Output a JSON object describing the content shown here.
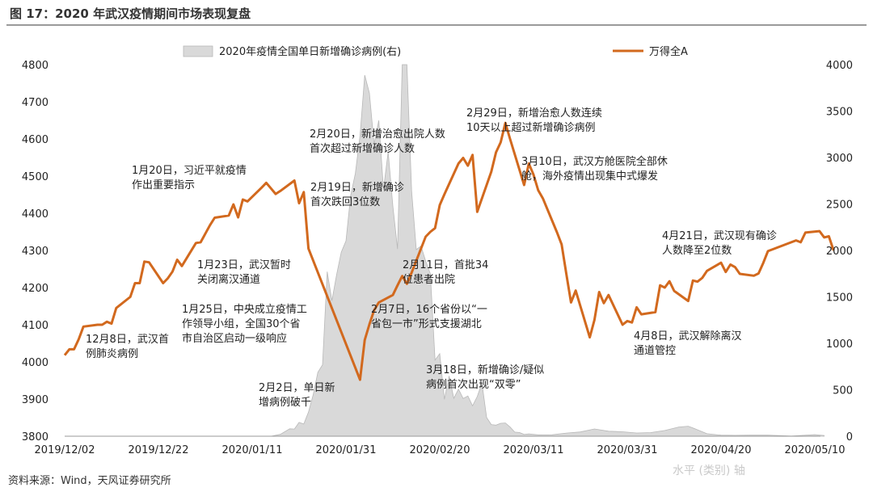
{
  "title": "图 17：2020 年武汉疫情期间市场表现复盘",
  "source": "资料来源：Wind，天风证券研究所",
  "watermark": "水平 (类别) 轴",
  "colors": {
    "line": "#d2691e",
    "area": "#d9d9d9",
    "area_stroke": "#b8b8b8"
  },
  "chart_data": {
    "type": "line",
    "x_ticks": [
      "2019/12/02",
      "2019/12/22",
      "2020/01/11",
      "2020/01/31",
      "2020/02/20",
      "2020/03/11",
      "2020/03/31",
      "2020/04/20",
      "2020/05/10"
    ],
    "ylim": [
      3800,
      4800
    ],
    "y_ticks": [
      "4800",
      "4700",
      "4600",
      "4500",
      "4400",
      "4300",
      "4200",
      "4100",
      "4000",
      "3900",
      "3800"
    ],
    "y2lim": [
      0,
      4000
    ],
    "y2_ticks": [
      "4000",
      "3500",
      "3000",
      "2500",
      "2000",
      "1500",
      "1000",
      "500",
      "0"
    ],
    "grid": false,
    "legend_position": "top",
    "series": [
      {
        "name": "2020年疫情全国单日新增确诊病例(右)",
        "axis": "right",
        "style": "area",
        "points": [
          [
            "2020/01/15",
            0
          ],
          [
            "2020/01/17",
            20
          ],
          [
            "2020/01/19",
            80
          ],
          [
            "2020/01/20",
            77
          ],
          [
            "2020/01/21",
            149
          ],
          [
            "2020/01/22",
            131
          ],
          [
            "2020/01/23",
            259
          ],
          [
            "2020/01/24",
            444
          ],
          [
            "2020/01/25",
            688
          ],
          [
            "2020/01/26",
            769
          ],
          [
            "2020/01/27",
            1771
          ],
          [
            "2020/01/28",
            1459
          ],
          [
            "2020/01/29",
            1737
          ],
          [
            "2020/01/30",
            1982
          ],
          [
            "2020/01/31",
            2102
          ],
          [
            "2020/02/01",
            2590
          ],
          [
            "2020/02/02",
            2829
          ],
          [
            "2020/02/03",
            3235
          ],
          [
            "2020/02/04",
            3887
          ],
          [
            "2020/02/05",
            3694
          ],
          [
            "2020/02/06",
            3143
          ],
          [
            "2020/02/07",
            3399
          ],
          [
            "2020/02/08",
            2656
          ],
          [
            "2020/02/09",
            3062
          ],
          [
            "2020/02/10",
            2478
          ],
          [
            "2020/02/11",
            2015
          ],
          [
            "2020/02/12",
            4000
          ],
          [
            "2020/02/13",
            4000
          ],
          [
            "2020/02/14",
            2641
          ],
          [
            "2020/02/15",
            2009
          ],
          [
            "2020/02/16",
            2048
          ],
          [
            "2020/02/17",
            1886
          ],
          [
            "2020/02/18",
            1749
          ],
          [
            "2020/02/19",
            820
          ],
          [
            "2020/02/20",
            889
          ],
          [
            "2020/02/21",
            397
          ],
          [
            "2020/02/22",
            648
          ],
          [
            "2020/02/23",
            409
          ],
          [
            "2020/02/24",
            508
          ],
          [
            "2020/02/25",
            406
          ],
          [
            "2020/02/26",
            433
          ],
          [
            "2020/02/27",
            327
          ],
          [
            "2020/02/28",
            427
          ],
          [
            "2020/02/29",
            573
          ],
          [
            "2020/03/01",
            202
          ],
          [
            "2020/03/02",
            125
          ],
          [
            "2020/03/03",
            119
          ],
          [
            "2020/03/04",
            139
          ],
          [
            "2020/03/05",
            143
          ],
          [
            "2020/03/06",
            99
          ],
          [
            "2020/03/07",
            44
          ],
          [
            "2020/03/08",
            40
          ],
          [
            "2020/03/09",
            19
          ],
          [
            "2020/03/10",
            24
          ],
          [
            "2020/03/12",
            15
          ],
          [
            "2020/03/15",
            16
          ],
          [
            "2020/03/18",
            34
          ],
          [
            "2020/03/21",
            46
          ],
          [
            "2020/03/24",
            78
          ],
          [
            "2020/03/27",
            54
          ],
          [
            "2020/03/30",
            48
          ],
          [
            "2020/04/02",
            35
          ],
          [
            "2020/04/05",
            39
          ],
          [
            "2020/04/08",
            62
          ],
          [
            "2020/04/11",
            99
          ],
          [
            "2020/04/13",
            108
          ],
          [
            "2020/04/14",
            89
          ],
          [
            "2020/04/17",
            27
          ],
          [
            "2020/04/20",
            11
          ],
          [
            "2020/04/23",
            10
          ],
          [
            "2020/04/26",
            11
          ],
          [
            "2020/04/30",
            12
          ],
          [
            "2020/05/05",
            2
          ],
          [
            "2020/05/10",
            17
          ],
          [
            "2020/05/12",
            8
          ]
        ]
      },
      {
        "name": "万得全A",
        "axis": "left",
        "style": "line",
        "points": [
          [
            "2019/12/02",
            4018
          ],
          [
            "2019/12/03",
            4034
          ],
          [
            "2019/12/04",
            4034
          ],
          [
            "2019/12/05",
            4061
          ],
          [
            "2019/12/06",
            4095
          ],
          [
            "2019/12/09",
            4100
          ],
          [
            "2019/12/10",
            4100
          ],
          [
            "2019/12/11",
            4108
          ],
          [
            "2019/12/12",
            4103
          ],
          [
            "2019/12/13",
            4145
          ],
          [
            "2019/12/16",
            4175
          ],
          [
            "2019/12/17",
            4212
          ],
          [
            "2019/12/18",
            4212
          ],
          [
            "2019/12/19",
            4270
          ],
          [
            "2019/12/20",
            4268
          ],
          [
            "2019/12/23",
            4212
          ],
          [
            "2019/12/24",
            4225
          ],
          [
            "2019/12/25",
            4243
          ],
          [
            "2019/12/26",
            4275
          ],
          [
            "2019/12/27",
            4258
          ],
          [
            "2019/12/30",
            4320
          ],
          [
            "2019/12/31",
            4322
          ],
          [
            "2020/01/02",
            4368
          ],
          [
            "2020/01/03",
            4388
          ],
          [
            "2020/01/06",
            4394
          ],
          [
            "2020/01/07",
            4424
          ],
          [
            "2020/01/08",
            4389
          ],
          [
            "2020/01/09",
            4437
          ],
          [
            "2020/01/10",
            4432
          ],
          [
            "2020/01/13",
            4469
          ],
          [
            "2020/01/14",
            4482
          ],
          [
            "2020/01/15",
            4467
          ],
          [
            "2020/01/16",
            4452
          ],
          [
            "2020/01/17",
            4460
          ],
          [
            "2020/01/20",
            4488
          ],
          [
            "2020/01/21",
            4427
          ],
          [
            "2020/01/22",
            4457
          ],
          [
            "2020/01/23",
            4305
          ],
          [
            "2020/02/03",
            3952
          ],
          [
            "2020/02/04",
            4059
          ],
          [
            "2020/02/05",
            4101
          ],
          [
            "2020/02/06",
            4139
          ],
          [
            "2020/02/07",
            4160
          ],
          [
            "2020/02/10",
            4180
          ],
          [
            "2020/02/11",
            4206
          ],
          [
            "2020/02/12",
            4231
          ],
          [
            "2020/02/13",
            4210
          ],
          [
            "2020/02/14",
            4240
          ],
          [
            "2020/02/17",
            4337
          ],
          [
            "2020/02/18",
            4350
          ],
          [
            "2020/02/19",
            4360
          ],
          [
            "2020/02/20",
            4422
          ],
          [
            "2020/02/21",
            4451
          ],
          [
            "2020/02/24",
            4534
          ],
          [
            "2020/02/25",
            4549
          ],
          [
            "2020/02/26",
            4528
          ],
          [
            "2020/02/27",
            4557
          ],
          [
            "2020/02/28",
            4404
          ],
          [
            "2020/03/02",
            4512
          ],
          [
            "2020/03/03",
            4564
          ],
          [
            "2020/03/04",
            4591
          ],
          [
            "2020/03/05",
            4643
          ],
          [
            "2020/03/06",
            4600
          ],
          [
            "2020/03/09",
            4476
          ],
          [
            "2020/03/10",
            4534
          ],
          [
            "2020/03/11",
            4504
          ],
          [
            "2020/03/12",
            4462
          ],
          [
            "2020/03/13",
            4440
          ],
          [
            "2020/03/16",
            4349
          ],
          [
            "2020/03/17",
            4316
          ],
          [
            "2020/03/18",
            4237
          ],
          [
            "2020/03/19",
            4160
          ],
          [
            "2020/03/20",
            4192
          ],
          [
            "2020/03/23",
            4066
          ],
          [
            "2020/03/24",
            4113
          ],
          [
            "2020/03/25",
            4188
          ],
          [
            "2020/03/26",
            4158
          ],
          [
            "2020/03/27",
            4180
          ],
          [
            "2020/03/30",
            4100
          ],
          [
            "2020/03/31",
            4110
          ],
          [
            "2020/04/01",
            4106
          ],
          [
            "2020/04/02",
            4147
          ],
          [
            "2020/04/03",
            4128
          ],
          [
            "2020/04/06",
            4134
          ],
          [
            "2020/04/07",
            4206
          ],
          [
            "2020/04/08",
            4200
          ],
          [
            "2020/04/09",
            4217
          ],
          [
            "2020/04/10",
            4191
          ],
          [
            "2020/04/13",
            4164
          ],
          [
            "2020/04/14",
            4219
          ],
          [
            "2020/04/15",
            4216
          ],
          [
            "2020/04/16",
            4226
          ],
          [
            "2020/04/17",
            4245
          ],
          [
            "2020/04/20",
            4267
          ],
          [
            "2020/04/21",
            4242
          ],
          [
            "2020/04/22",
            4262
          ],
          [
            "2020/04/23",
            4255
          ],
          [
            "2020/04/24",
            4237
          ],
          [
            "2020/04/27",
            4232
          ],
          [
            "2020/04/28",
            4238
          ],
          [
            "2020/04/29",
            4266
          ],
          [
            "2020/04/30",
            4298
          ],
          [
            "2020/05/06",
            4327
          ],
          [
            "2020/05/07",
            4322
          ],
          [
            "2020/05/08",
            4348
          ],
          [
            "2020/05/11",
            4352
          ],
          [
            "2020/05/12",
            4335
          ],
          [
            "2020/05/13",
            4338
          ],
          [
            "2020/05/14",
            4300
          ]
        ]
      }
    ],
    "annotations": [
      {
        "date": "2019/12/08",
        "lines": [
          "12月8日，武汉首",
          "例肺炎病例"
        ]
      },
      {
        "date": "2020/01/20",
        "lines": [
          "1月20日，习近平就疫情",
          "作出重要指示"
        ]
      },
      {
        "date": "2020/01/23",
        "lines": [
          "1月23日，武汉暂时",
          "关闭离汉通道"
        ]
      },
      {
        "date": "2020/01/25",
        "lines": [
          "1月25日，中央成立疫情工",
          "作领导小组，全国30个省",
          "市自治区启动一级响应"
        ]
      },
      {
        "date": "2020/02/02",
        "lines": [
          "2月2日，单日新",
          "增病例破千"
        ]
      },
      {
        "date": "2020/02/20",
        "lines": [
          "2月20日，新增治愈出院人数",
          "首次超过新增确诊人数"
        ]
      },
      {
        "date": "2020/02/19",
        "lines": [
          "2月19日，新增确诊",
          "首次跌回3位数"
        ]
      },
      {
        "date": "2020/02/11",
        "lines": [
          "2月11日，首批34",
          "位患者出院"
        ]
      },
      {
        "date": "2020/02/07",
        "lines": [
          "2月7日，16个省份以“一",
          "省包一市”形式支援湖北"
        ]
      },
      {
        "date": "2020/02/29",
        "lines": [
          "2月29日，新增治愈人数连续",
          "10天以上超过新增确诊病例"
        ]
      },
      {
        "date": "2020/03/10",
        "lines": [
          "3月10日，武汉方舱医院全部休",
          "舱，海外疫情出现集中式爆发"
        ]
      },
      {
        "date": "2020/03/18",
        "lines": [
          "3月18日，新增确诊/疑似",
          "病例首次出现“双零”"
        ]
      },
      {
        "date": "2020/04/08",
        "lines": [
          "4月8日，武汉解除离汉",
          "通道管控"
        ]
      },
      {
        "date": "2020/04/21",
        "lines": [
          "4月21日，武汉现有确诊",
          "人数降至2位数"
        ]
      }
    ]
  }
}
